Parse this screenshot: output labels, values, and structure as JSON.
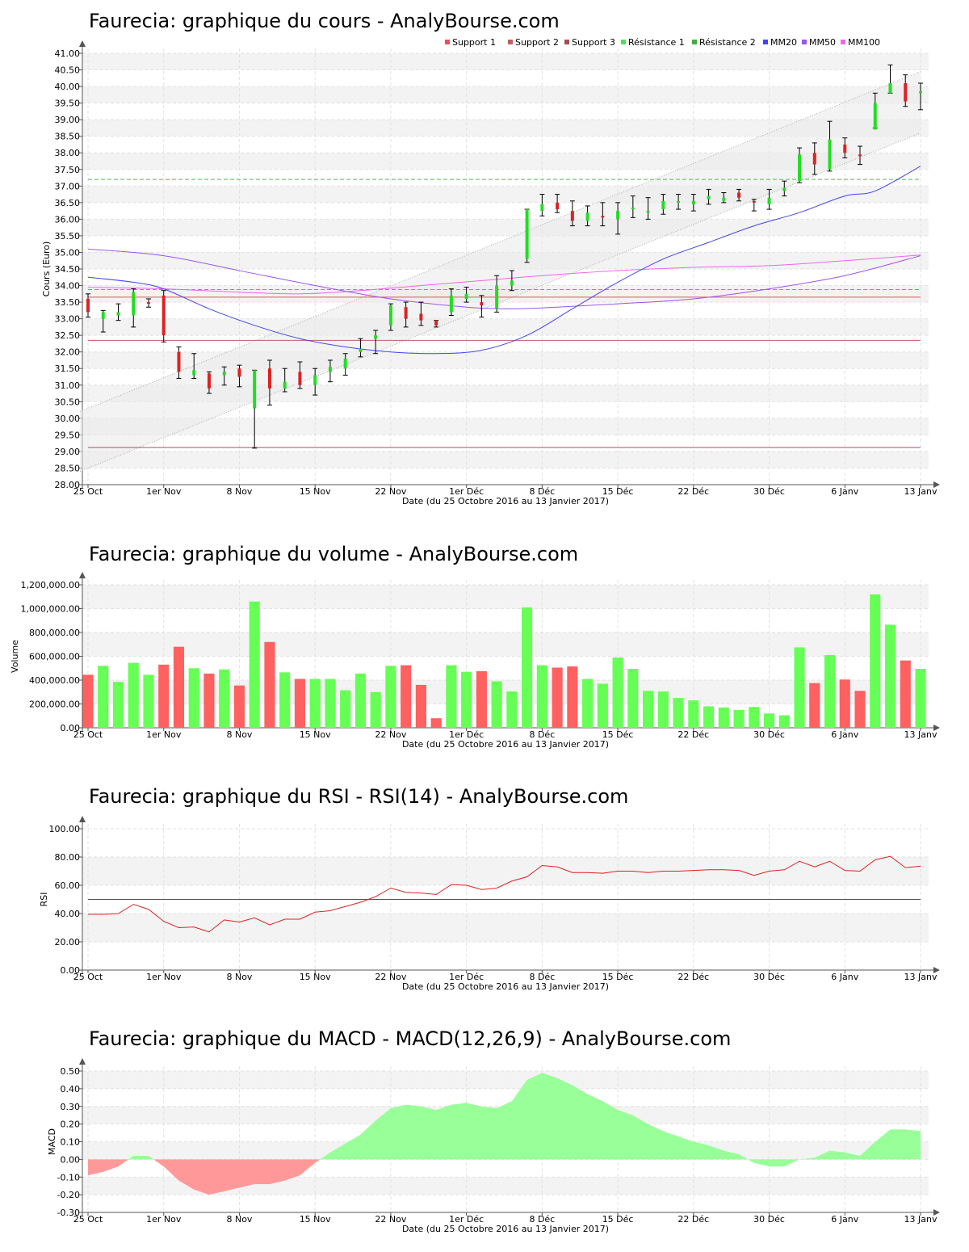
{
  "charts": {
    "price": {
      "title": "Faurecia: graphique du cours - AnalyBourse.com",
      "ylabel": "Cours (Euro)"
    },
    "volume": {
      "title": "Faurecia: graphique du volume - AnalyBourse.com",
      "ylabel": "Volume"
    },
    "rsi": {
      "title": "Faurecia: graphique du RSI - RSI(14) - AnalyBourse.com",
      "ylabel": "RSI"
    },
    "macd": {
      "title": "Faurecia: graphique du MACD - MACD(12,26,9) - AnalyBourse.com",
      "ylabel": "MACD"
    }
  },
  "xlabel": "Date (du 25 Octobre 2016 au 13 Janvier 2017)",
  "x_ticks": [
    "25 Oct",
    "1er Nov",
    "8 Nov",
    "15 Nov",
    "22 Nov",
    "1er Déc",
    "8 Déc",
    "15 Déc",
    "22 Déc",
    "30 Déc",
    "6 Janv",
    "13 Janv"
  ],
  "legend": [
    {
      "label": "Support 1",
      "color": "#e05555"
    },
    {
      "label": "Support 2",
      "color": "#c06060"
    },
    {
      "label": "Support 3",
      "color": "#a05050"
    },
    {
      "label": "Résistance 1",
      "color": "#55dd55"
    },
    {
      "label": "Résistance 2",
      "color": "#44aa44"
    },
    {
      "label": "MM20",
      "color": "#4444ee"
    },
    {
      "label": "MM50",
      "color": "#9955ee"
    },
    {
      "label": "MM100",
      "color": "#ee66ee"
    }
  ],
  "chart_data": [
    {
      "type": "candlestick",
      "name": "price",
      "ylim": [
        28.0,
        41.0
      ],
      "yticks": [
        "28.00",
        "28.50",
        "29.00",
        "29.50",
        "30.00",
        "30.50",
        "31.00",
        "31.50",
        "32.00",
        "32.50",
        "33.00",
        "33.50",
        "34.00",
        "34.50",
        "35.00",
        "35.50",
        "36.00",
        "36.50",
        "37.00",
        "37.50",
        "38.00",
        "38.50",
        "39.00",
        "39.50",
        "40.00",
        "40.50",
        "41.00"
      ],
      "candles": [
        {
          "o": 33.6,
          "c": 33.2,
          "h": 33.75,
          "l": 33.05
        },
        {
          "o": 33.0,
          "c": 33.2,
          "h": 33.25,
          "l": 32.6
        },
        {
          "o": 33.1,
          "c": 33.2,
          "h": 33.45,
          "l": 32.95
        },
        {
          "o": 33.1,
          "c": 33.8,
          "h": 33.9,
          "l": 32.75
        },
        {
          "o": 33.5,
          "c": 33.45,
          "h": 33.6,
          "l": 33.35
        },
        {
          "o": 33.7,
          "c": 32.5,
          "h": 33.85,
          "l": 32.3
        },
        {
          "o": 32.0,
          "c": 31.4,
          "h": 32.15,
          "l": 31.2
        },
        {
          "o": 31.3,
          "c": 31.45,
          "h": 31.95,
          "l": 31.2
        },
        {
          "o": 31.35,
          "c": 30.9,
          "h": 31.4,
          "l": 30.75
        },
        {
          "o": 31.3,
          "c": 31.4,
          "h": 31.55,
          "l": 31.0
        },
        {
          "o": 31.5,
          "c": 31.25,
          "h": 31.6,
          "l": 30.95
        },
        {
          "o": 30.3,
          "c": 31.45,
          "h": 31.45,
          "l": 29.1
        },
        {
          "o": 31.5,
          "c": 30.9,
          "h": 31.75,
          "l": 30.4
        },
        {
          "o": 30.9,
          "c": 31.1,
          "h": 31.5,
          "l": 30.8
        },
        {
          "o": 31.4,
          "c": 31.0,
          "h": 31.7,
          "l": 30.9
        },
        {
          "o": 31.0,
          "c": 31.3,
          "h": 31.5,
          "l": 30.7
        },
        {
          "o": 31.4,
          "c": 31.55,
          "h": 31.75,
          "l": 31.1
        },
        {
          "o": 31.5,
          "c": 31.8,
          "h": 31.95,
          "l": 31.3
        },
        {
          "o": 32.0,
          "c": 32.1,
          "h": 32.4,
          "l": 31.85
        },
        {
          "o": 32.4,
          "c": 32.5,
          "h": 32.65,
          "l": 31.95
        },
        {
          "o": 32.8,
          "c": 33.4,
          "h": 33.45,
          "l": 32.65
        },
        {
          "o": 33.35,
          "c": 33.0,
          "h": 33.5,
          "l": 32.75
        },
        {
          "o": 33.15,
          "c": 32.95,
          "h": 33.5,
          "l": 32.8
        },
        {
          "o": 32.95,
          "c": 32.8,
          "h": 32.95,
          "l": 32.75
        },
        {
          "o": 33.2,
          "c": 33.7,
          "h": 33.9,
          "l": 33.1
        },
        {
          "o": 33.6,
          "c": 33.75,
          "h": 33.95,
          "l": 33.5
        },
        {
          "o": 33.5,
          "c": 33.4,
          "h": 33.7,
          "l": 33.05
        },
        {
          "o": 33.3,
          "c": 34.0,
          "h": 34.3,
          "l": 33.2
        },
        {
          "o": 34.0,
          "c": 34.15,
          "h": 34.45,
          "l": 33.85
        },
        {
          "o": 34.8,
          "c": 36.3,
          "h": 36.3,
          "l": 34.7
        },
        {
          "o": 36.25,
          "c": 36.45,
          "h": 36.75,
          "l": 36.1
        },
        {
          "o": 36.5,
          "c": 36.3,
          "h": 36.75,
          "l": 36.2
        },
        {
          "o": 36.25,
          "c": 35.95,
          "h": 36.55,
          "l": 35.8
        },
        {
          "o": 35.95,
          "c": 36.2,
          "h": 36.4,
          "l": 35.8
        },
        {
          "o": 36.1,
          "c": 36.05,
          "h": 36.5,
          "l": 35.8
        },
        {
          "o": 36.0,
          "c": 36.25,
          "h": 36.5,
          "l": 35.55
        },
        {
          "o": 36.3,
          "c": 36.35,
          "h": 36.7,
          "l": 36.05
        },
        {
          "o": 36.2,
          "c": 36.25,
          "h": 36.65,
          "l": 36.0
        },
        {
          "o": 36.3,
          "c": 36.55,
          "h": 36.75,
          "l": 36.15
        },
        {
          "o": 36.5,
          "c": 36.55,
          "h": 36.75,
          "l": 36.3
        },
        {
          "o": 36.45,
          "c": 36.55,
          "h": 36.75,
          "l": 36.25
        },
        {
          "o": 36.6,
          "c": 36.7,
          "h": 36.9,
          "l": 36.45
        },
        {
          "o": 36.55,
          "c": 36.65,
          "h": 36.8,
          "l": 36.5
        },
        {
          "o": 36.8,
          "c": 36.65,
          "h": 36.9,
          "l": 36.55
        },
        {
          "o": 36.55,
          "c": 36.5,
          "h": 36.6,
          "l": 36.25
        },
        {
          "o": 36.45,
          "c": 36.65,
          "h": 36.9,
          "l": 36.3
        },
        {
          "o": 36.85,
          "c": 36.95,
          "h": 37.15,
          "l": 36.7
        },
        {
          "o": 37.15,
          "c": 37.95,
          "h": 38.15,
          "l": 37.1
        },
        {
          "o": 38.0,
          "c": 37.65,
          "h": 38.3,
          "l": 37.35
        },
        {
          "o": 37.5,
          "c": 38.4,
          "h": 38.95,
          "l": 37.45
        },
        {
          "o": 38.25,
          "c": 38.0,
          "h": 38.45,
          "l": 37.85
        },
        {
          "o": 37.95,
          "c": 37.9,
          "h": 38.2,
          "l": 37.65
        },
        {
          "o": 38.7,
          "c": 39.5,
          "h": 39.8,
          "l": 38.75
        },
        {
          "o": 39.8,
          "c": 40.1,
          "h": 40.65,
          "l": 39.8
        },
        {
          "o": 40.1,
          "c": 39.55,
          "h": 40.35,
          "l": 39.4
        },
        {
          "o": 39.8,
          "c": 39.85,
          "h": 40.1,
          "l": 39.3
        }
      ],
      "support_1": 33.65,
      "support_2": 32.35,
      "support_3": 29.12,
      "resistance_1": 37.2,
      "resistance_2": 33.88,
      "channel_upper": [
        30.2,
        40.45
      ],
      "channel_lower": [
        28.4,
        38.6
      ],
      "mm20": [
        [
          0,
          34.25
        ],
        [
          3,
          34.1
        ],
        [
          5,
          33.9
        ],
        [
          8,
          33.3
        ],
        [
          11,
          32.8
        ],
        [
          14,
          32.4
        ],
        [
          17,
          32.15
        ],
        [
          20,
          32.0
        ],
        [
          23,
          31.95
        ],
        [
          26,
          32.05
        ],
        [
          29,
          32.5
        ],
        [
          32,
          33.3
        ],
        [
          35,
          34.1
        ],
        [
          38,
          34.8
        ],
        [
          41,
          35.3
        ],
        [
          44,
          35.8
        ],
        [
          47,
          36.2
        ],
        [
          50,
          36.7
        ],
        [
          52,
          36.85
        ],
        [
          55,
          37.6
        ]
      ],
      "mm50": [
        [
          0,
          35.1
        ],
        [
          5,
          34.9
        ],
        [
          10,
          34.45
        ],
        [
          15,
          34.0
        ],
        [
          20,
          33.6
        ],
        [
          25,
          33.35
        ],
        [
          28,
          33.3
        ],
        [
          31,
          33.35
        ],
        [
          35,
          33.45
        ],
        [
          40,
          33.6
        ],
        [
          45,
          33.9
        ],
        [
          50,
          34.3
        ],
        [
          55,
          34.9
        ]
      ],
      "mm100": [
        [
          0,
          33.95
        ],
        [
          5,
          33.9
        ],
        [
          10,
          33.8
        ],
        [
          14,
          33.75
        ],
        [
          18,
          33.85
        ],
        [
          22,
          34.0
        ],
        [
          26,
          34.15
        ],
        [
          30,
          34.3
        ],
        [
          35,
          34.45
        ],
        [
          40,
          34.55
        ],
        [
          45,
          34.6
        ],
        [
          50,
          34.75
        ],
        [
          55,
          34.92
        ]
      ]
    },
    {
      "type": "bar",
      "name": "volume",
      "ylim": [
        0,
        1200000
      ],
      "yticks": [
        "0.00",
        "200,000.00",
        "400,000.00",
        "600,000.00",
        "800,000.00",
        "1,000,000.00",
        "1,200,000.00"
      ],
      "values": [
        445000,
        520000,
        385000,
        545000,
        445000,
        530000,
        680000,
        500000,
        455000,
        490000,
        355000,
        1060000,
        720000,
        465000,
        410000,
        410000,
        410000,
        315000,
        455000,
        300000,
        520000,
        525000,
        360000,
        80000,
        525000,
        470000,
        475000,
        390000,
        305000,
        1010000,
        525000,
        505000,
        515000,
        410000,
        370000,
        590000,
        495000,
        310000,
        305000,
        250000,
        230000,
        180000,
        170000,
        150000,
        175000,
        120000,
        105000,
        675000,
        375000,
        610000,
        405000,
        310000,
        1120000,
        865000,
        565000,
        495000
      ],
      "up": [
        false,
        true,
        true,
        true,
        true,
        false,
        false,
        true,
        false,
        true,
        false,
        true,
        false,
        true,
        false,
        true,
        true,
        true,
        true,
        true,
        true,
        false,
        false,
        false,
        true,
        true,
        false,
        true,
        true,
        true,
        true,
        false,
        false,
        true,
        true,
        true,
        true,
        true,
        true,
        true,
        true,
        true,
        true,
        true,
        true,
        true,
        true,
        true,
        false,
        true,
        false,
        false,
        true,
        true,
        false,
        true
      ]
    },
    {
      "type": "line",
      "name": "rsi",
      "ylim": [
        0,
        100
      ],
      "yticks": [
        "0.00",
        "20.00",
        "40.00",
        "60.00",
        "80.00",
        "100.00"
      ],
      "reference": 50,
      "values": [
        39.5,
        39.5,
        40.0,
        46.5,
        43.0,
        34.5,
        30.0,
        30.5,
        27.0,
        35.5,
        34.0,
        37.0,
        32.0,
        36.0,
        36.0,
        41.0,
        42.0,
        45.0,
        48.0,
        52.0,
        58.0,
        55.0,
        54.5,
        53.5,
        60.5,
        60.0,
        57.0,
        58.0,
        63.0,
        66.0,
        74.0,
        73.0,
        69.0,
        69.0,
        68.5,
        70.0,
        70.0,
        69.0,
        70.0,
        70.0,
        70.5,
        71.0,
        71.0,
        70.5,
        67.0,
        70.0,
        71.0,
        77.0,
        73.0,
        77.0,
        70.5,
        70.0,
        78.0,
        80.5,
        72.5,
        73.5
      ]
    },
    {
      "type": "area",
      "name": "macd",
      "ylim": [
        -0.3,
        0.5
      ],
      "yticks": [
        "-0.30",
        "-0.20",
        "-0.10",
        "0.00",
        "0.10",
        "0.20",
        "0.30",
        "0.40",
        "0.50"
      ],
      "values": [
        -0.09,
        -0.07,
        -0.04,
        0.02,
        0.02,
        -0.04,
        -0.12,
        -0.17,
        -0.2,
        -0.18,
        -0.16,
        -0.14,
        -0.14,
        -0.12,
        -0.09,
        -0.02,
        0.04,
        0.09,
        0.14,
        0.22,
        0.29,
        0.31,
        0.3,
        0.28,
        0.31,
        0.32,
        0.3,
        0.29,
        0.33,
        0.45,
        0.49,
        0.46,
        0.42,
        0.37,
        0.33,
        0.28,
        0.25,
        0.2,
        0.16,
        0.13,
        0.1,
        0.08,
        0.05,
        0.03,
        -0.02,
        -0.04,
        -0.04,
        0.0,
        0.01,
        0.05,
        0.04,
        0.02,
        0.1,
        0.17,
        0.17,
        0.16
      ]
    }
  ]
}
